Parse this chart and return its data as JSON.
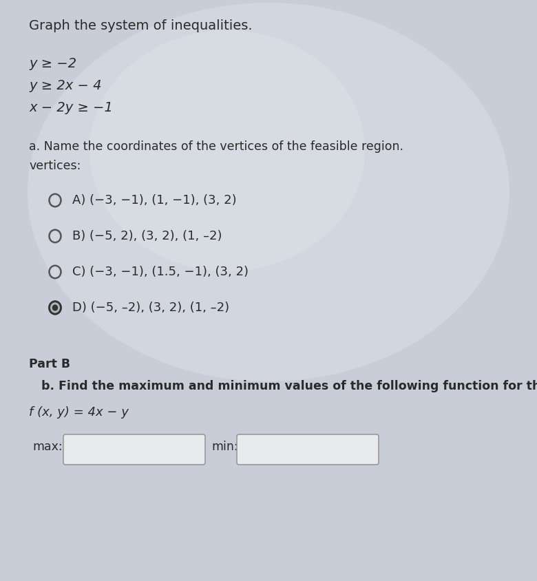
{
  "title": "Graph the system of inequalities.",
  "inequalities": [
    "y ≥ −2",
    "y ≥ 2x − 4",
    "x − 2y ≥ −1"
  ],
  "part_a_label": "a. Name the coordinates of the vertices of the feasible region.",
  "vertices_label": "vertices:",
  "choices": [
    "A) (−3, −1), (1, −1), (3, 2)",
    "B) (−5, 2), (3, 2), (1, –2)",
    "C) (−3, −1), (1.5, −1), (3, 2)",
    "D) (−5, –2), (3, 2), (1, –2)"
  ],
  "selected_choice": 3,
  "part_b_label": "Part B",
  "part_b_text": "b. Find the maximum and minimum values of the following function for this region:",
  "function_label": "f (x, y) = 4x − y",
  "max_label": "max:",
  "min_label": "min:",
  "bg_color": "#c8cdd8",
  "text_color": "#2a2a2a",
  "radio_color": "#555555",
  "box_color": "#e8eaee",
  "box_edge_color": "#999999",
  "title_fontsize": 14,
  "ineq_fontsize": 14,
  "body_fontsize": 12.5,
  "choice_fontsize": 13
}
